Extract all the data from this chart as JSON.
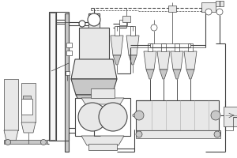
{
  "line_color": "#555555",
  "dark_color": "#444444",
  "gray_fill": "#c8c8c8",
  "light_fill": "#e8e8e8",
  "lw_main": 0.8,
  "lw_thin": 0.5,
  "lw_thick": 1.2
}
